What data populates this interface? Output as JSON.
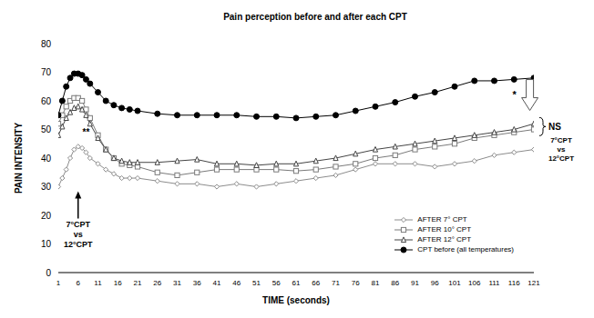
{
  "chart_data": {
    "type": "line",
    "title": "Pain perception before and after each CPT",
    "x_label": "TIME (seconds)",
    "y_label": "PAIN INTENSITY",
    "x": [
      1,
      2,
      3,
      4,
      5,
      6,
      7,
      8,
      9,
      11,
      13,
      15,
      17,
      19,
      21,
      26,
      31,
      36,
      41,
      46,
      51,
      56,
      61,
      66,
      71,
      76,
      81,
      86,
      91,
      96,
      101,
      106,
      111,
      116,
      121
    ],
    "xlim": [
      1,
      121
    ],
    "xticks": [
      1,
      6,
      11,
      16,
      21,
      26,
      31,
      36,
      41,
      46,
      51,
      56,
      61,
      66,
      71,
      76,
      81,
      86,
      91,
      96,
      101,
      106,
      111,
      116,
      121
    ],
    "ylim": [
      0,
      80
    ],
    "yticks": [
      0,
      10,
      20,
      30,
      40,
      50,
      60,
      70,
      80
    ],
    "grid": false,
    "legend": "lower right",
    "series": [
      {
        "name": "AFTER 7° CPT",
        "color": "#8c8c8c",
        "marker": "diamond",
        "values": [
          30,
          33,
          36,
          40,
          43,
          44,
          43.5,
          42,
          40,
          38,
          36,
          34.5,
          33,
          33,
          33,
          32,
          31,
          31,
          30,
          31,
          30,
          31,
          32,
          33,
          34,
          36,
          38,
          38,
          38,
          37,
          38,
          39,
          41,
          42,
          43
        ]
      },
      {
        "name": "AFTER 10° CPT",
        "color": "#7a7a7a",
        "marker": "square",
        "values": [
          52,
          55,
          58,
          60,
          61,
          61,
          60,
          57,
          54,
          48,
          43,
          40,
          38,
          37.5,
          37,
          35,
          34,
          35,
          36,
          36,
          36,
          36,
          35.5,
          36,
          37,
          38,
          40,
          41,
          43,
          44,
          45,
          47,
          48,
          49,
          50
        ]
      },
      {
        "name": "AFTER 12° CPT",
        "color": "#444444",
        "marker": "triangle",
        "values": [
          48,
          51,
          54,
          56,
          57.5,
          58,
          57,
          55,
          52,
          47,
          43,
          40,
          39,
          38.5,
          38.5,
          38.5,
          39,
          39.5,
          38,
          38,
          37.5,
          38,
          38,
          39,
          40,
          41.5,
          43,
          44,
          45,
          46,
          47,
          48,
          49,
          50,
          52
        ]
      },
      {
        "name": "CPT before (all temperatures)",
        "color": "#000000",
        "marker": "circle",
        "values": [
          55,
          60,
          65,
          68,
          69.5,
          69.5,
          69,
          67.5,
          66,
          63,
          60,
          58.5,
          57.5,
          57,
          56.5,
          55.5,
          55,
          55,
          55,
          55,
          54.5,
          54.5,
          54,
          54.5,
          55,
          56.5,
          58,
          59.5,
          61.5,
          63,
          65,
          67,
          67,
          67.5,
          68
        ]
      }
    ],
    "annotations": [
      {
        "text": "7°CPT vs 12°CPT",
        "x": 6,
        "y": 17
      },
      {
        "text": "**",
        "x": 8,
        "y": 48
      },
      {
        "text": "*",
        "x": 117,
        "y": 63
      },
      {
        "text": "NS 7°CPT vs 12°CPT",
        "x": 121,
        "y": 51
      }
    ]
  }
}
